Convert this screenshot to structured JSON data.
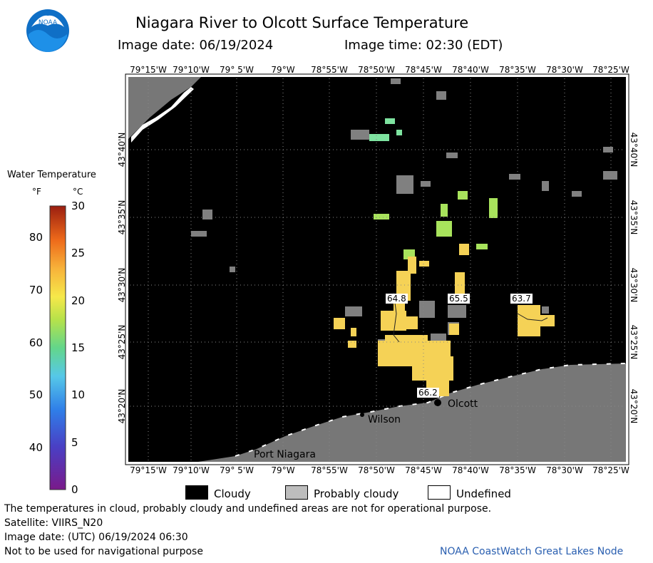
{
  "header": {
    "title": "Niagara River to Olcott Surface Temperature",
    "image_date": "Image date: 06/19/2024",
    "image_time": "Image time: 02:30 (EDT)"
  },
  "logo": {
    "text": "NOAA"
  },
  "colorbar": {
    "title": "Water Temperature",
    "unit_f": "°F",
    "unit_c": "°C",
    "f_ticks": [
      "80",
      "70",
      "60",
      "50",
      "40"
    ],
    "c_ticks": [
      "30",
      "25",
      "20",
      "15",
      "10",
      "5",
      "0"
    ]
  },
  "axes": {
    "lon_ticks": [
      "79°15'W",
      "79°10'W",
      "79° 5'W",
      "79°W",
      "78°55'W",
      "78°50'W",
      "78°45'W",
      "78°40'W",
      "78°35'W",
      "78°30'W",
      "78°25'W"
    ],
    "lat_ticks": [
      "43°40'N",
      "43°35'N",
      "43°30'N",
      "43°25'N",
      "43°20'N"
    ]
  },
  "map": {
    "places": [
      "Olcott",
      "Wilson",
      "Port Niagara"
    ],
    "temp_labels": [
      "64.8",
      "65.5",
      "63.7",
      "66.2"
    ],
    "colors": {
      "cloud": "#000000",
      "probably_cloudy": "#808080",
      "land": "#777777",
      "warm": "#f5d256",
      "green": "#a8e35c",
      "aqua": "#7ee3a0"
    }
  },
  "legend": {
    "cloudy": "Cloudy",
    "probably_cloudy": "Probably cloudy",
    "undefined": "Undefined"
  },
  "footer": {
    "disclaimer": "The temperatures in cloud, probably cloudy and undefined areas are not for operational purpose.",
    "satellite": "Satellite: VIIRS_N20",
    "utc_date": "Image date: (UTC) 06/19/2024  06:30",
    "nav_warning": "Not to be used for navigational purpose",
    "credit": "NOAA CoastWatch Great Lakes Node"
  }
}
